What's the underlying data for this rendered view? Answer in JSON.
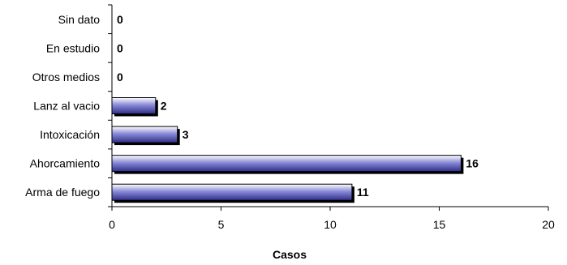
{
  "chart_data": {
    "type": "bar",
    "orientation": "horizontal",
    "categories": [
      "Sin dato",
      "En estudio",
      "Otros medios",
      "Lanz al vacio",
      "Intoxicación",
      "Ahorcamiento",
      "Arma de fuego"
    ],
    "values": [
      0,
      0,
      0,
      2,
      3,
      16,
      11
    ],
    "xlabel": "Casos",
    "xlim": [
      0,
      20
    ],
    "xticks": [
      0,
      5,
      10,
      15,
      20
    ],
    "data_labels": true,
    "grid": false,
    "legend": "none",
    "colors": {
      "bar_light": "#ffffff",
      "bar_mid": "#8a8ad8",
      "bar_dark": "#2e2e8a",
      "bar_shadow": "#000000"
    }
  }
}
